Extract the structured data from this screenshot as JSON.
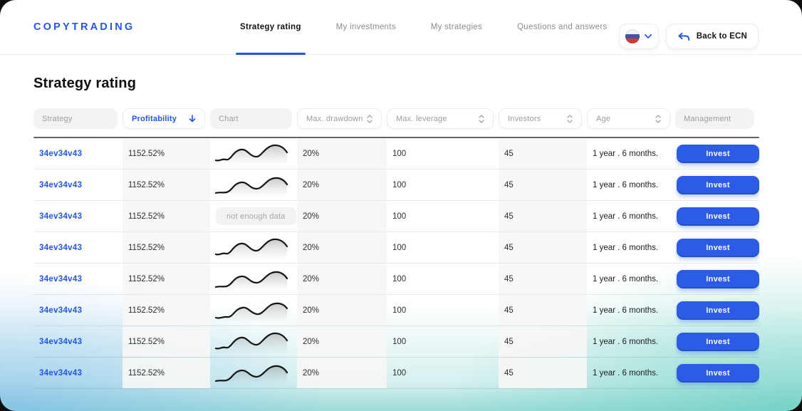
{
  "brand": "COPYTRADING",
  "nav": {
    "tabs": [
      {
        "label": "Strategy rating",
        "active": true
      },
      {
        "label": "My investments",
        "active": false
      },
      {
        "label": "My strategies",
        "active": false
      },
      {
        "label": "Questions and answers",
        "active": false
      }
    ]
  },
  "actions": {
    "language_flag": "russian-flag",
    "back_label": "Back to ECN"
  },
  "page": {
    "title": "Strategy rating"
  },
  "table": {
    "no_data_label": "not enough data",
    "columns": [
      {
        "label": "Strategy",
        "type": "static"
      },
      {
        "label": "Profitability",
        "type": "sorted",
        "sort": "desc"
      },
      {
        "label": "Chart",
        "type": "static"
      },
      {
        "label": "Max. drawdown",
        "type": "sortable"
      },
      {
        "label": "Max. leverage",
        "type": "sortable"
      },
      {
        "label": "Investors",
        "type": "sortable"
      },
      {
        "label": "Age",
        "type": "sortable"
      },
      {
        "label": "Management",
        "type": "static"
      }
    ],
    "rows": [
      {
        "strategy": "34ev34v43",
        "profitability": "1152.52%",
        "chart": "sparkline",
        "max_drawdown": "20%",
        "max_leverage": "100",
        "investors": "45",
        "age": "1 year . 6 months.",
        "action": "Invest"
      },
      {
        "strategy": "34ev34v43",
        "profitability": "1152.52%",
        "chart": "sparkline",
        "max_drawdown": "20%",
        "max_leverage": "100",
        "investors": "45",
        "age": "1 year . 6 months.",
        "action": "Invest"
      },
      {
        "strategy": "34ev34v43",
        "profitability": "1152.52%",
        "chart": "no_data",
        "max_drawdown": "20%",
        "max_leverage": "100",
        "investors": "45",
        "age": "1 year . 6 months.",
        "action": "Invest"
      },
      {
        "strategy": "34ev34v43",
        "profitability": "1152.52%",
        "chart": "sparkline",
        "max_drawdown": "20%",
        "max_leverage": "100",
        "investors": "45",
        "age": "1 year . 6 months.",
        "action": "Invest"
      },
      {
        "strategy": "34ev34v43",
        "profitability": "1152.52%",
        "chart": "sparkline",
        "max_drawdown": "20%",
        "max_leverage": "100",
        "investors": "45",
        "age": "1 year . 6 months.",
        "action": "Invest"
      },
      {
        "strategy": "34ev34v43",
        "profitability": "1152.52%",
        "chart": "sparkline",
        "max_drawdown": "20%",
        "max_leverage": "100",
        "investors": "45",
        "age": "1 year . 6 months.",
        "action": "Invest"
      },
      {
        "strategy": "34ev34v43",
        "profitability": "1152.52%",
        "chart": "sparkline",
        "max_drawdown": "20%",
        "max_leverage": "100",
        "investors": "45",
        "age": "1 year . 6 months.",
        "action": "Invest"
      },
      {
        "strategy": "34ev34v43",
        "profitability": "1152.52%",
        "chart": "sparkline",
        "max_drawdown": "20%",
        "max_leverage": "100",
        "investors": "45",
        "age": "1 year . 6 months.",
        "action": "Invest"
      }
    ]
  },
  "colors": {
    "accent": "#2456e4",
    "invest_button": "#2c5ce5",
    "tint_column": "#f6f6f6",
    "gradient_blue": "#74b4e9",
    "gradient_teal": "#66cec1"
  }
}
